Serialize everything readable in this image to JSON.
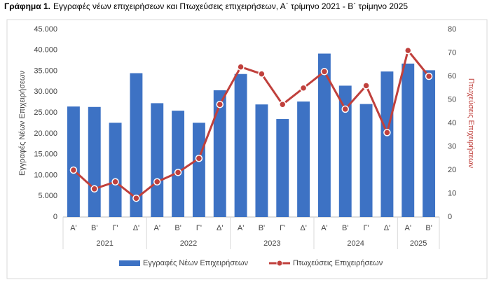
{
  "chart_data": {
    "type": "bar-line",
    "figure_label": "Γράφημα 1.",
    "title": "Εγγραφές νέων επιχειρήσεων και Πτωχεύσεις επιχειρήσεων, Α΄ τρίμηνο 2021 - Β΄ τρίμηνο 2025",
    "groups": [
      {
        "label": "2021",
        "categories": [
          "Α'",
          "Β'",
          "Γ'",
          "Δ'"
        ]
      },
      {
        "label": "2022",
        "categories": [
          "Α'",
          "Β'",
          "Γ'",
          "Δ'"
        ]
      },
      {
        "label": "2023",
        "categories": [
          "Α'",
          "Β'",
          "Γ'",
          "Δ'"
        ]
      },
      {
        "label": "2024",
        "categories": [
          "Α'",
          "Β'",
          "Γ'",
          "Δ'"
        ]
      },
      {
        "label": "2025",
        "categories": [
          "Α'",
          "Β'"
        ]
      }
    ],
    "series": [
      {
        "name": "Εγγραφές Νέων Επιχειρήσεων",
        "type": "bar",
        "color": "#3d72c4",
        "values": [
          26500,
          26400,
          22600,
          34500,
          27300,
          25500,
          22600,
          30400,
          34300,
          27000,
          23500,
          27700,
          39200,
          31500,
          27100,
          34900,
          36800,
          35200
        ]
      },
      {
        "name": "Πτωχεύσεις Επιχειρήσεων",
        "type": "line",
        "axis": "y2",
        "color": "#c0403c",
        "values": [
          20,
          12,
          15,
          8,
          15,
          19,
          25,
          48,
          64,
          61,
          48,
          55,
          62,
          46,
          56,
          36,
          71,
          60
        ]
      }
    ],
    "ylabel": "Εγγραφές Νέων Επιχειρήσεων",
    "y2label": "Πτωχεύσεις Επιχειρήσεων",
    "y2label_color": "#c0403c",
    "ylim": [
      0,
      45000
    ],
    "yticks": [
      0,
      {
        "value": 5000,
        "label": "5.000"
      },
      {
        "value": 10000,
        "label": "10.000"
      },
      {
        "value": 15000,
        "label": "15.000"
      },
      {
        "value": 20000,
        "label": "20.000"
      },
      {
        "value": 25000,
        "label": "25.000"
      },
      {
        "value": 30000,
        "label": "30.000"
      },
      {
        "value": 35000,
        "label": "35.000"
      },
      {
        "value": 40000,
        "label": "40.000"
      },
      {
        "value": 45000,
        "label": "45.000"
      }
    ],
    "y2lim": [
      0,
      80
    ],
    "y2ticks": [
      0,
      10,
      20,
      30,
      40,
      50,
      60,
      70,
      80
    ],
    "grid": false,
    "legend": "bottom"
  }
}
